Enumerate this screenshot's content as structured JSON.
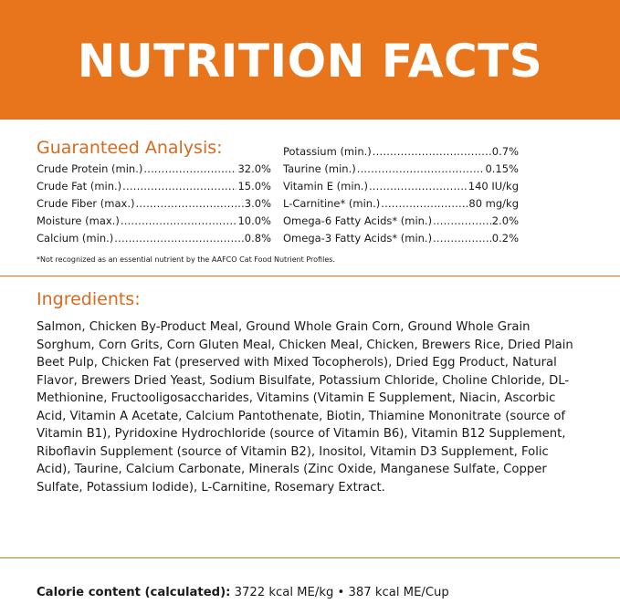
{
  "banner": {
    "title": "NUTRITION FACTS"
  },
  "guaranteed_analysis": {
    "heading": "Guaranteed Analysis:",
    "left_column": [
      {
        "name": "Crude Protein (min.)",
        "value": "32.0%"
      },
      {
        "name": "Crude Fat (min.)",
        "value": "15.0%"
      },
      {
        "name": "Crude Fiber (max.)",
        "value": "3.0%"
      },
      {
        "name": "Moisture (max.)",
        "value": "10.0%"
      },
      {
        "name": "Calcium (min.)",
        "value": "0.8%"
      }
    ],
    "right_column": [
      {
        "name": "Potassium (min.)",
        "value": "0.7%"
      },
      {
        "name": "Taurine (min.)",
        "value": "0.15%"
      },
      {
        "name": "Vitamin E (min.)",
        "value": "140 IU/kg"
      },
      {
        "name": "L-Carnitine* (min.)",
        "value": "80 mg/kg"
      },
      {
        "name": "Omega-6 Fatty Acids* (min.)",
        "value": "2.0%"
      },
      {
        "name": "Omega-3 Fatty Acids* (min.)",
        "value": "0.2%"
      }
    ],
    "footnote": "*Not recognized as an essential nutrient by the AAFCO Cat Food Nutrient Profiles."
  },
  "ingredients": {
    "heading": "Ingredients:",
    "text": "Salmon, Chicken By-Product Meal, Ground Whole Grain Corn, Ground Whole Grain Sorghum, Corn Grits, Corn Gluten Meal, Chicken Meal, Chicken, Brewers Rice, Dried Plain Beet Pulp, Chicken Fat (preserved with Mixed Tocopherols), Dried Egg Product, Natural Flavor, Brewers Dried Yeast, Sodium Bisulfate, Potassium Chloride, Choline Chloride, DL-Methionine, Fructooligosaccharides, Vitamins (Vitamin E Supplement, Niacin, Ascorbic Acid, Vitamin A Acetate, Calcium Pantothenate, Biotin, Thiamine Mononitrate (source of Vitamin B1), Pyridoxine Hydrochloride (source of Vitamin B6), Vitamin B12 Supplement, Riboflavin Supplement (source of Vitamin B2), Inositol, Vitamin D3 Supplement, Folic Acid), Taurine, Calcium Carbonate, Minerals (Zinc Oxide, Manganese Sulfate, Copper Sulfate, Potassium Iodide), L-Carnitine, Rosemary Extract."
  },
  "calorie": {
    "label": "Calorie content (calculated):",
    "value": " 3722 kcal ME/kg • 387 kcal ME/Cup"
  },
  "colors": {
    "accent": "#e8741c",
    "heading": "#d8691d"
  }
}
